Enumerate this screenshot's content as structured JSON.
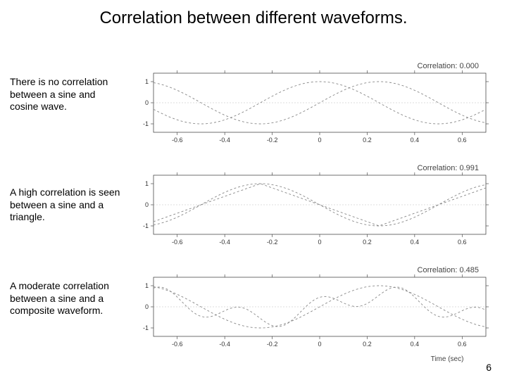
{
  "title": "Correlation between different waveforms.",
  "page_number": "6",
  "axis": {
    "xlim": [
      -0.7,
      0.7
    ],
    "xticks": [
      -0.6,
      -0.4,
      -0.2,
      0,
      0.2,
      0.4,
      0.6
    ],
    "ylim": [
      -1.4,
      1.4
    ],
    "yticks": [
      -1,
      0,
      1
    ],
    "xlabel": "Time (sec)",
    "tick_fontsize": 9,
    "axis_color": "#333333",
    "grid_color": "#bbbbbb",
    "background_color": "#ffffff"
  },
  "waveform_style": {
    "stroke_color": "#888888",
    "stroke_width": 0.9,
    "dasharray": "3 3"
  },
  "panels": [
    {
      "caption": "There is no correlation between a sine and cosine wave.",
      "correlation_label": "Correlation: 0.000",
      "series": [
        {
          "type": "sine",
          "freq_hz": 1.0,
          "phase_deg": 0,
          "amp": 1.0
        },
        {
          "type": "cosine",
          "freq_hz": 1.0,
          "phase_deg": 0,
          "amp": 1.0
        }
      ]
    },
    {
      "caption": "A high correlation is seen between a sine and a triangle.",
      "correlation_label": "Correlation: 0.991",
      "series": [
        {
          "type": "sine",
          "freq_hz": 1.0,
          "phase_deg": 180,
          "amp": 1.0
        },
        {
          "type": "triangle",
          "freq_hz": 1.0,
          "phase_deg": 180,
          "amp": 1.0
        }
      ]
    },
    {
      "caption": "A moderate correlation between a sine and a composite waveform.",
      "correlation_label": "Correlation: 0.485",
      "series": [
        {
          "type": "sine",
          "freq_hz": 1.0,
          "phase_deg": 0,
          "amp": 1.0
        },
        {
          "type": "composite",
          "components": [
            {
              "freq_hz": 1.0,
              "phase_deg": 0,
              "amp": 0.55
            },
            {
              "freq_hz": 3.0,
              "phase_deg": 90,
              "amp": 0.45
            }
          ]
        }
      ]
    }
  ]
}
